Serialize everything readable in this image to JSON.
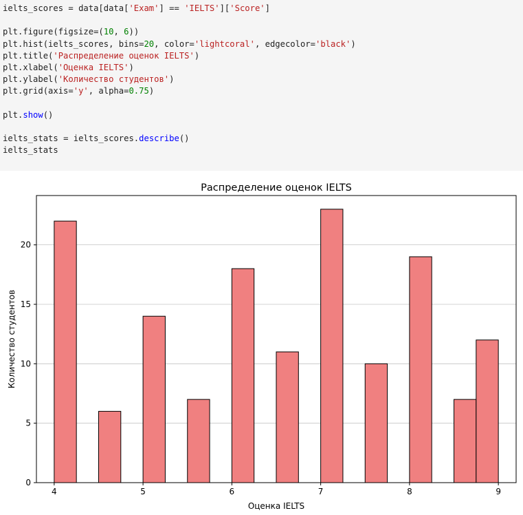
{
  "code_cell": {
    "lines": [
      "ielts_scores = data[data['Exam'] == 'IELTS']['Score']",
      "",
      "plt.figure(figsize=(10, 6))",
      "plt.hist(ielts_scores, bins=20, color='lightcoral', edgecolor='black')",
      "plt.title('Распределение оценок IELTS')",
      "plt.xlabel('Оценка IELTS')",
      "plt.ylabel('Количество студентов')",
      "plt.grid(axis='y', alpha=0.75)",
      "",
      "plt.show()",
      "",
      "ielts_stats = ielts_scores.describe()",
      "ielts_stats"
    ]
  },
  "chart_data": {
    "type": "bar",
    "title": "Распределение оценок IELTS",
    "xlabel": "Оценка IELTS",
    "ylabel": "Количество студентов",
    "bar_color": "#f08080",
    "edge_color": "#000000",
    "xlim": [
      3.8,
      9.2
    ],
    "ylim": [
      0,
      24.15
    ],
    "xticks": [
      4,
      5,
      6,
      7,
      8,
      9
    ],
    "yticks": [
      0,
      5,
      10,
      15,
      20
    ],
    "grid": "y",
    "bins": [
      {
        "x0": 4.0,
        "x1": 4.25,
        "count": 22
      },
      {
        "x0": 4.5,
        "x1": 4.75,
        "count": 6
      },
      {
        "x0": 5.0,
        "x1": 5.25,
        "count": 14
      },
      {
        "x0": 5.5,
        "x1": 5.75,
        "count": 7
      },
      {
        "x0": 6.0,
        "x1": 6.25,
        "count": 18
      },
      {
        "x0": 6.5,
        "x1": 6.75,
        "count": 11
      },
      {
        "x0": 7.0,
        "x1": 7.25,
        "count": 23
      },
      {
        "x0": 7.5,
        "x1": 7.75,
        "count": 10
      },
      {
        "x0": 8.0,
        "x1": 8.25,
        "count": 19
      },
      {
        "x0": 8.5,
        "x1": 8.75,
        "count": 7
      },
      {
        "x0": 8.75,
        "x1": 9.0,
        "count": 12
      }
    ]
  }
}
